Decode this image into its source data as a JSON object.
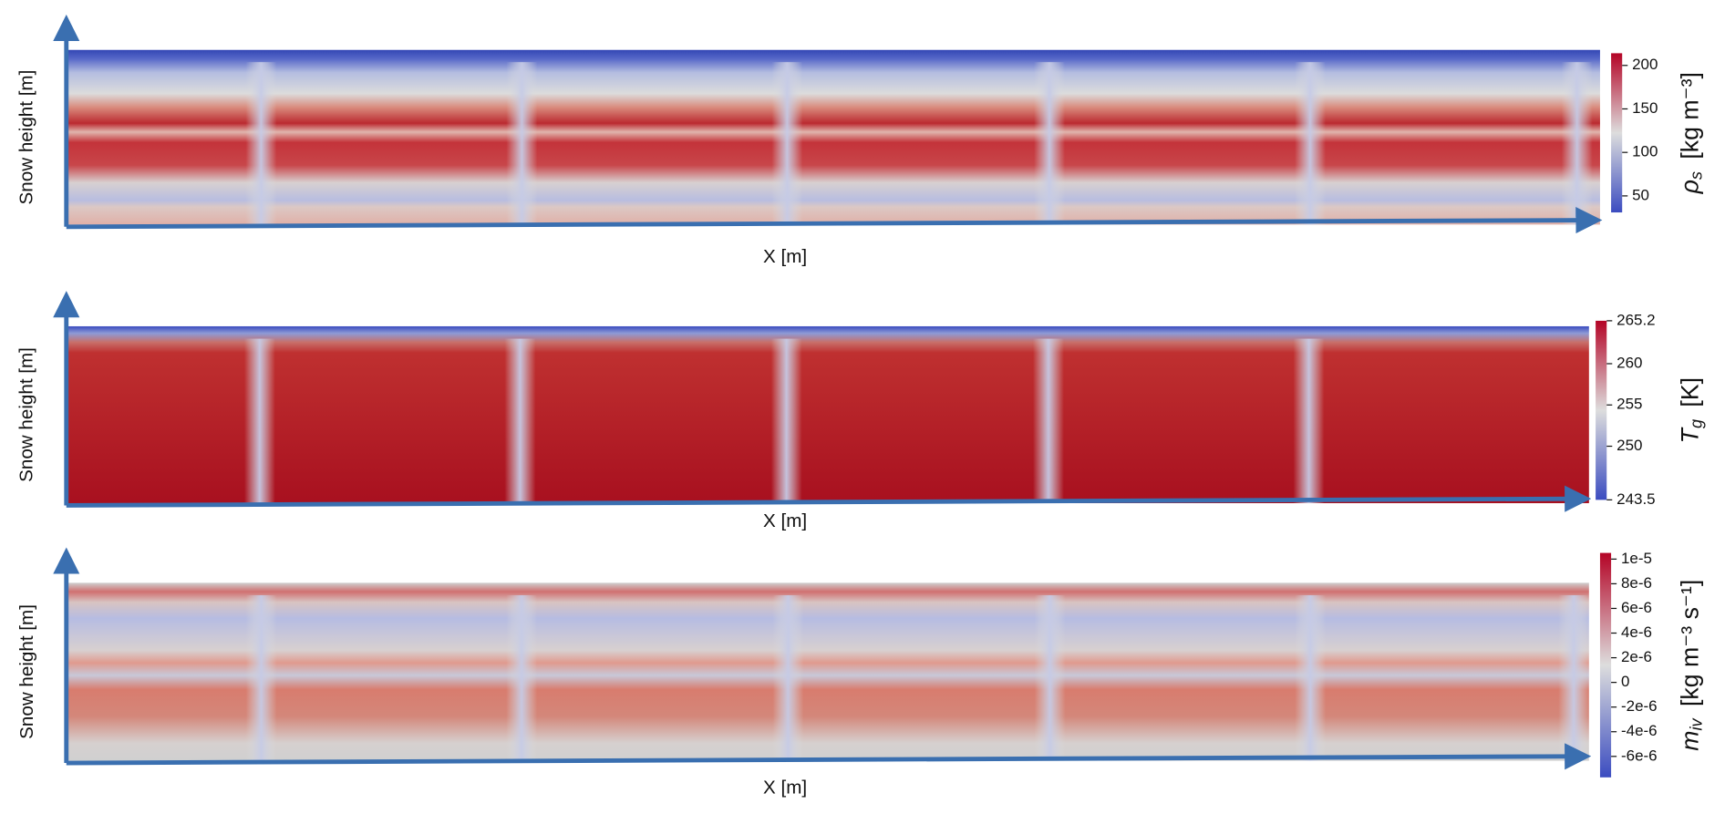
{
  "chart_data": [
    {
      "type": "heatmap",
      "y_label": "Snow height [m]",
      "x_label": "X [m]",
      "colorbar_label": {
        "symbol": "ρ",
        "subscript": "s",
        "unit": "[kg m⁻³]"
      },
      "cmap": [
        "#3b4cc0",
        "#dddddd",
        "#b40426"
      ],
      "clim": [
        31,
        214
      ],
      "cticks": [
        50,
        100,
        150,
        200
      ]
    },
    {
      "type": "heatmap",
      "y_label": "Snow height [m]",
      "x_label": "X [m]",
      "colorbar_label": {
        "symbol": "T",
        "subscript": "g",
        "unit": "[K]"
      },
      "cmap": [
        "#3b4cc0",
        "#dddddd",
        "#b40426"
      ],
      "clim": [
        243.5,
        265.2
      ],
      "cticks": [
        243.5,
        250,
        255,
        260,
        265.2
      ]
    },
    {
      "type": "heatmap",
      "y_label": "Snow height [m]",
      "x_label": "X [m]",
      "colorbar_label": {
        "symbol": "m",
        "subscript": "iv",
        "unit": "[kg m⁻³ s⁻¹]"
      },
      "cmap": [
        "#3b4cc0",
        "#dddddd",
        "#b40426"
      ],
      "clim": [
        -7.7e-06,
        1.05e-05
      ],
      "cticks": [
        {
          "value": 1e-05,
          "label": "1e-5"
        },
        {
          "value": 8e-06,
          "label": "8e-6"
        },
        {
          "value": 6e-06,
          "label": "6e-6"
        },
        {
          "value": 4e-06,
          "label": "4e-6"
        },
        {
          "value": 2e-06,
          "label": "2e-6"
        },
        0,
        {
          "value": -2e-06,
          "label": "-2e-6"
        },
        {
          "value": -4e-06,
          "label": "-4e-6"
        },
        {
          "value": -6e-06,
          "label": "-6e-6"
        }
      ]
    }
  ]
}
